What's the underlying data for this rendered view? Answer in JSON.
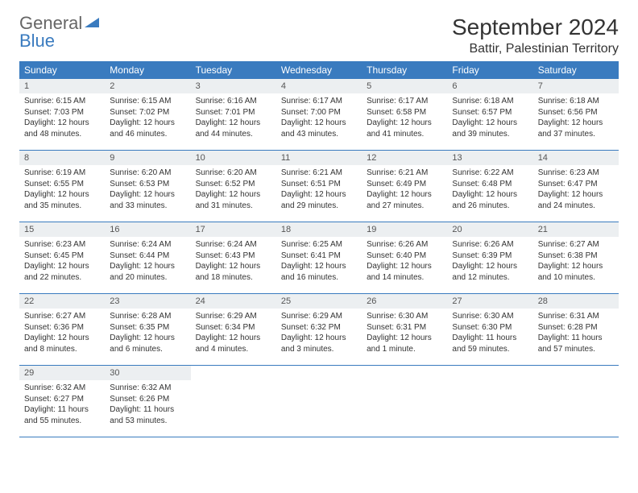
{
  "brand": {
    "part1": "General",
    "part2": "Blue"
  },
  "title": "September 2024",
  "location": "Battir, Palestinian Territory",
  "colors": {
    "header_bg": "#3a7bbf",
    "header_fg": "#ffffff",
    "daynum_bg": "#eceff1",
    "text": "#333333",
    "brand_gray": "#666666",
    "brand_blue": "#3a7bbf"
  },
  "weekdays": [
    "Sunday",
    "Monday",
    "Tuesday",
    "Wednesday",
    "Thursday",
    "Friday",
    "Saturday"
  ],
  "layout": {
    "cols": 7,
    "rows": 5
  },
  "days": [
    {
      "n": 1,
      "sunrise": "6:15 AM",
      "sunset": "7:03 PM",
      "daylight": "12 hours and 48 minutes."
    },
    {
      "n": 2,
      "sunrise": "6:15 AM",
      "sunset": "7:02 PM",
      "daylight": "12 hours and 46 minutes."
    },
    {
      "n": 3,
      "sunrise": "6:16 AM",
      "sunset": "7:01 PM",
      "daylight": "12 hours and 44 minutes."
    },
    {
      "n": 4,
      "sunrise": "6:17 AM",
      "sunset": "7:00 PM",
      "daylight": "12 hours and 43 minutes."
    },
    {
      "n": 5,
      "sunrise": "6:17 AM",
      "sunset": "6:58 PM",
      "daylight": "12 hours and 41 minutes."
    },
    {
      "n": 6,
      "sunrise": "6:18 AM",
      "sunset": "6:57 PM",
      "daylight": "12 hours and 39 minutes."
    },
    {
      "n": 7,
      "sunrise": "6:18 AM",
      "sunset": "6:56 PM",
      "daylight": "12 hours and 37 minutes."
    },
    {
      "n": 8,
      "sunrise": "6:19 AM",
      "sunset": "6:55 PM",
      "daylight": "12 hours and 35 minutes."
    },
    {
      "n": 9,
      "sunrise": "6:20 AM",
      "sunset": "6:53 PM",
      "daylight": "12 hours and 33 minutes."
    },
    {
      "n": 10,
      "sunrise": "6:20 AM",
      "sunset": "6:52 PM",
      "daylight": "12 hours and 31 minutes."
    },
    {
      "n": 11,
      "sunrise": "6:21 AM",
      "sunset": "6:51 PM",
      "daylight": "12 hours and 29 minutes."
    },
    {
      "n": 12,
      "sunrise": "6:21 AM",
      "sunset": "6:49 PM",
      "daylight": "12 hours and 27 minutes."
    },
    {
      "n": 13,
      "sunrise": "6:22 AM",
      "sunset": "6:48 PM",
      "daylight": "12 hours and 26 minutes."
    },
    {
      "n": 14,
      "sunrise": "6:23 AM",
      "sunset": "6:47 PM",
      "daylight": "12 hours and 24 minutes."
    },
    {
      "n": 15,
      "sunrise": "6:23 AM",
      "sunset": "6:45 PM",
      "daylight": "12 hours and 22 minutes."
    },
    {
      "n": 16,
      "sunrise": "6:24 AM",
      "sunset": "6:44 PM",
      "daylight": "12 hours and 20 minutes."
    },
    {
      "n": 17,
      "sunrise": "6:24 AM",
      "sunset": "6:43 PM",
      "daylight": "12 hours and 18 minutes."
    },
    {
      "n": 18,
      "sunrise": "6:25 AM",
      "sunset": "6:41 PM",
      "daylight": "12 hours and 16 minutes."
    },
    {
      "n": 19,
      "sunrise": "6:26 AM",
      "sunset": "6:40 PM",
      "daylight": "12 hours and 14 minutes."
    },
    {
      "n": 20,
      "sunrise": "6:26 AM",
      "sunset": "6:39 PM",
      "daylight": "12 hours and 12 minutes."
    },
    {
      "n": 21,
      "sunrise": "6:27 AM",
      "sunset": "6:38 PM",
      "daylight": "12 hours and 10 minutes."
    },
    {
      "n": 22,
      "sunrise": "6:27 AM",
      "sunset": "6:36 PM",
      "daylight": "12 hours and 8 minutes."
    },
    {
      "n": 23,
      "sunrise": "6:28 AM",
      "sunset": "6:35 PM",
      "daylight": "12 hours and 6 minutes."
    },
    {
      "n": 24,
      "sunrise": "6:29 AM",
      "sunset": "6:34 PM",
      "daylight": "12 hours and 4 minutes."
    },
    {
      "n": 25,
      "sunrise": "6:29 AM",
      "sunset": "6:32 PM",
      "daylight": "12 hours and 3 minutes."
    },
    {
      "n": 26,
      "sunrise": "6:30 AM",
      "sunset": "6:31 PM",
      "daylight": "12 hours and 1 minute."
    },
    {
      "n": 27,
      "sunrise": "6:30 AM",
      "sunset": "6:30 PM",
      "daylight": "11 hours and 59 minutes."
    },
    {
      "n": 28,
      "sunrise": "6:31 AM",
      "sunset": "6:28 PM",
      "daylight": "11 hours and 57 minutes."
    },
    {
      "n": 29,
      "sunrise": "6:32 AM",
      "sunset": "6:27 PM",
      "daylight": "11 hours and 55 minutes."
    },
    {
      "n": 30,
      "sunrise": "6:32 AM",
      "sunset": "6:26 PM",
      "daylight": "11 hours and 53 minutes."
    }
  ],
  "labels": {
    "sunrise": "Sunrise:",
    "sunset": "Sunset:",
    "daylight": "Daylight:"
  }
}
